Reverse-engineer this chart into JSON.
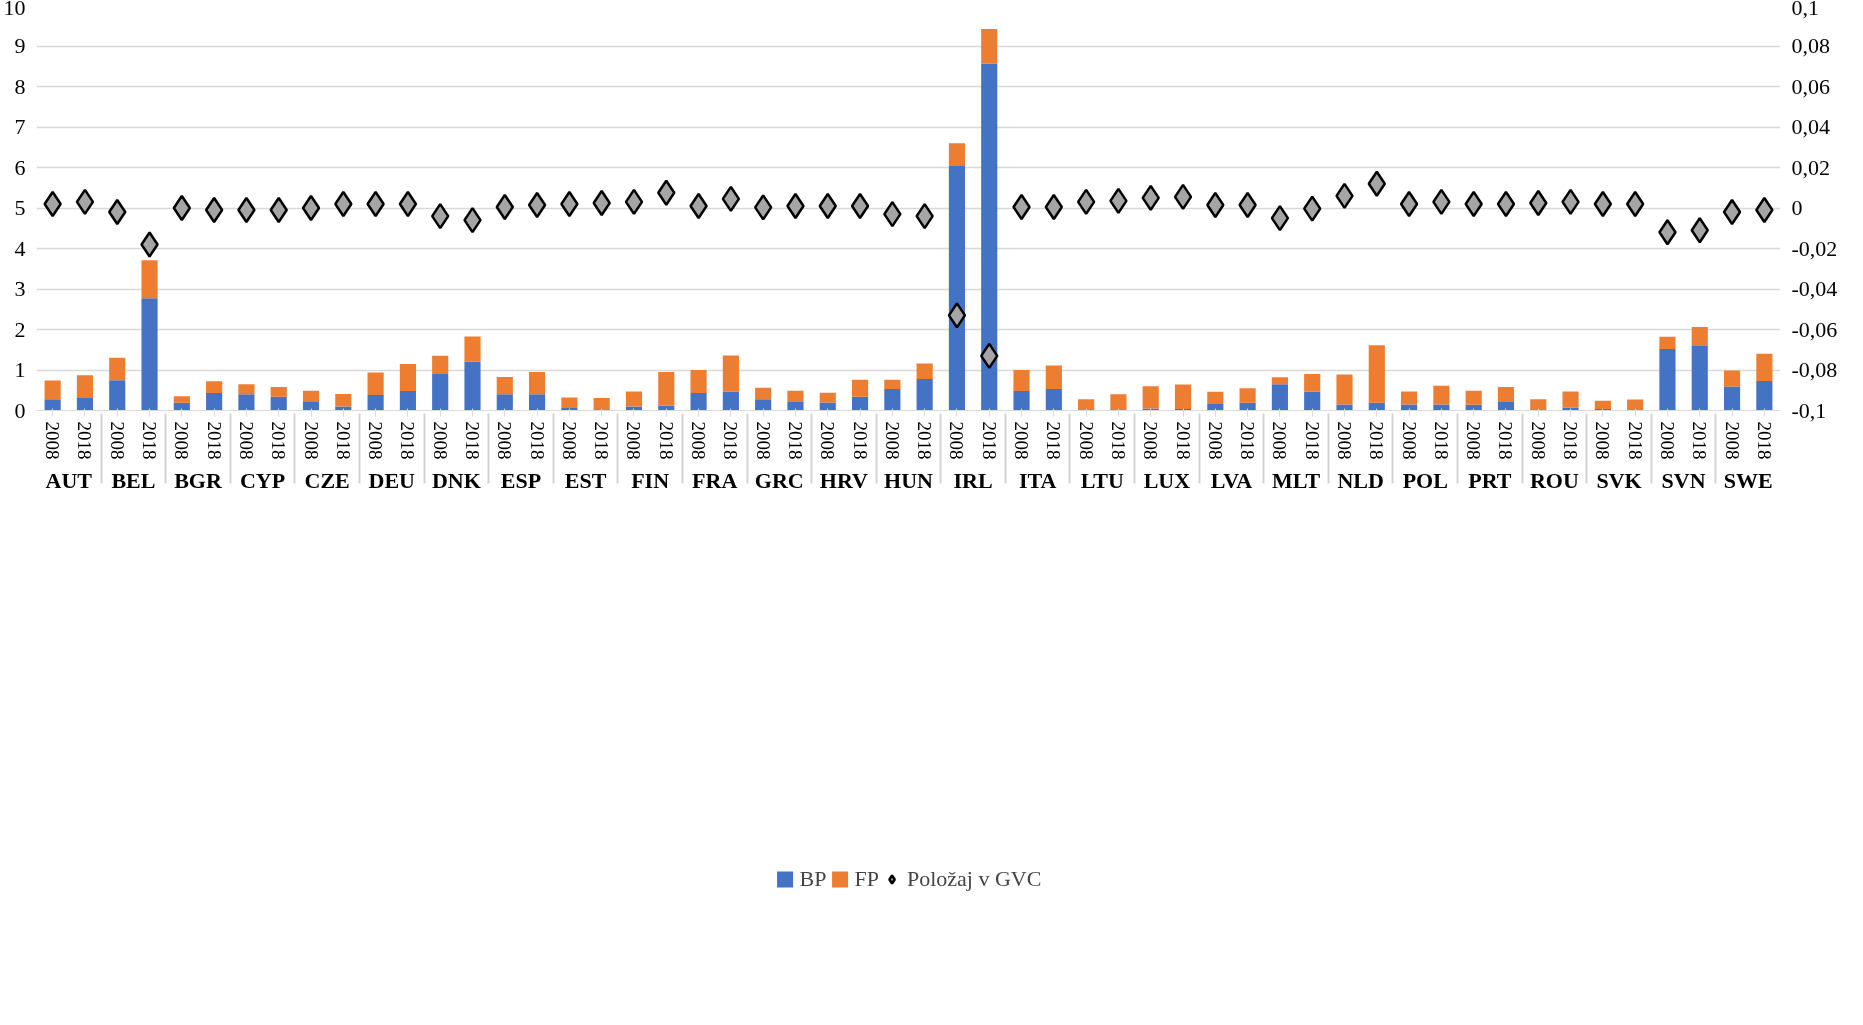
{
  "chart_data": {
    "type": "bar",
    "stacked": true,
    "categories": [
      "2008",
      "2018",
      "2008",
      "2018",
      "2008",
      "2018",
      "2008",
      "2018",
      "2008",
      "2018",
      "2008",
      "2018",
      "2008",
      "2018",
      "2008",
      "2018",
      "2008",
      "2018",
      "2008",
      "2018",
      "2008",
      "2018",
      "2008",
      "2018",
      "2008",
      "2018",
      "2008",
      "2018",
      "2008",
      "2018",
      "2008",
      "2018",
      "2008",
      "2018",
      "2008",
      "2018",
      "2008",
      "2018",
      "2008",
      "2018",
      "2008",
      "2018",
      "2008",
      "2018",
      "2008",
      "2018",
      "2008",
      "2018",
      "2008",
      "2018",
      "2008",
      "2018",
      "2008",
      "2018"
    ],
    "annotations": [
      "AUT",
      "BEL",
      "BGR",
      "CYP",
      "CZE",
      "DEU",
      "DNK",
      "ESP",
      "EST",
      "FIN",
      "FRA",
      "GRC",
      "HRV",
      "HUN",
      "IRL",
      "ITA",
      "LTU",
      "LUX",
      "LVA",
      "MLT",
      "NLD",
      "POL",
      "PRT",
      "ROU",
      "SVK",
      "SVN",
      "SWE"
    ],
    "series": [
      {
        "name": "BP",
        "color": "#4472c4",
        "values": [
          0.28,
          0.31,
          0.75,
          2.77,
          0.19,
          0.43,
          0.4,
          0.34,
          0.23,
          0.1,
          0.38,
          0.48,
          0.9,
          1.21,
          0.4,
          0.4,
          0.06,
          0.03,
          0.1,
          0.12,
          0.43,
          0.46,
          0.28,
          0.21,
          0.2,
          0.34,
          0.53,
          0.78,
          6.04,
          8.56,
          0.48,
          0.53,
          0.0,
          0.03,
          0.05,
          0.04,
          0.16,
          0.19,
          0.65,
          0.46,
          0.15,
          0.19,
          0.15,
          0.15,
          0.14,
          0.21,
          0.03,
          0.07,
          0.04,
          0.03,
          1.52,
          1.59,
          0.59,
          0.73
        ]
      },
      {
        "name": "FP",
        "color": "#ed7d31",
        "values": [
          0.46,
          0.56,
          0.55,
          0.94,
          0.16,
          0.29,
          0.25,
          0.24,
          0.26,
          0.31,
          0.56,
          0.67,
          0.45,
          0.62,
          0.43,
          0.55,
          0.26,
          0.28,
          0.37,
          0.83,
          0.57,
          0.9,
          0.28,
          0.28,
          0.24,
          0.42,
          0.23,
          0.38,
          0.56,
          0.86,
          0.52,
          0.58,
          0.28,
          0.37,
          0.55,
          0.6,
          0.3,
          0.36,
          0.17,
          0.44,
          0.74,
          1.42,
          0.32,
          0.46,
          0.35,
          0.37,
          0.25,
          0.4,
          0.2,
          0.24,
          0.3,
          0.47,
          0.4,
          0.67
        ]
      },
      {
        "name": "Položaj v GVC",
        "type": "scatter",
        "axis": "y2",
        "marker": "diamond",
        "color": "#a5a5a5",
        "values": [
          0.002,
          0.003,
          -0.002,
          -0.018,
          0.0,
          -0.001,
          -0.001,
          -0.001,
          0.0,
          0.002,
          0.002,
          0.002,
          -0.004,
          -0.006,
          0.0005,
          0.0015,
          0.002,
          0.0025,
          0.003,
          0.0075,
          0.001,
          0.0045,
          0.0003,
          0.001,
          0.001,
          0.001,
          -0.003,
          -0.004,
          -0.053,
          -0.073,
          0.0005,
          0.0005,
          0.003,
          0.0035,
          0.005,
          0.0055,
          0.0015,
          0.0015,
          -0.005,
          -0.0003,
          0.006,
          0.012,
          0.002,
          0.003,
          0.002,
          0.002,
          0.0025,
          0.003,
          0.002,
          0.002,
          -0.012,
          -0.011,
          -0.002,
          -0.001
        ]
      }
    ],
    "ylim": [
      0,
      10
    ],
    "yticks": [
      0,
      1,
      2,
      3,
      4,
      5,
      6,
      7,
      8,
      9,
      10
    ],
    "y2lim": [
      -0.1,
      0.1
    ],
    "y2ticks": [
      {
        "value": -0.1,
        "label": "-0,1"
      },
      {
        "value": -0.08,
        "label": "-0,08"
      },
      {
        "value": -0.06,
        "label": "-0,06"
      },
      {
        "value": -0.04,
        "label": "-0,04"
      },
      {
        "value": -0.02,
        "label": "-0,02"
      },
      {
        "value": 0,
        "label": "0"
      },
      {
        "value": 0.02,
        "label": "0,02"
      },
      {
        "value": 0.04,
        "label": "0,04"
      },
      {
        "value": 0.06,
        "label": "0,06"
      },
      {
        "value": 0.08,
        "label": "0,08"
      },
      {
        "value": 0.1,
        "label": "0,1"
      }
    ],
    "grid": "y",
    "legend": "bottom"
  }
}
